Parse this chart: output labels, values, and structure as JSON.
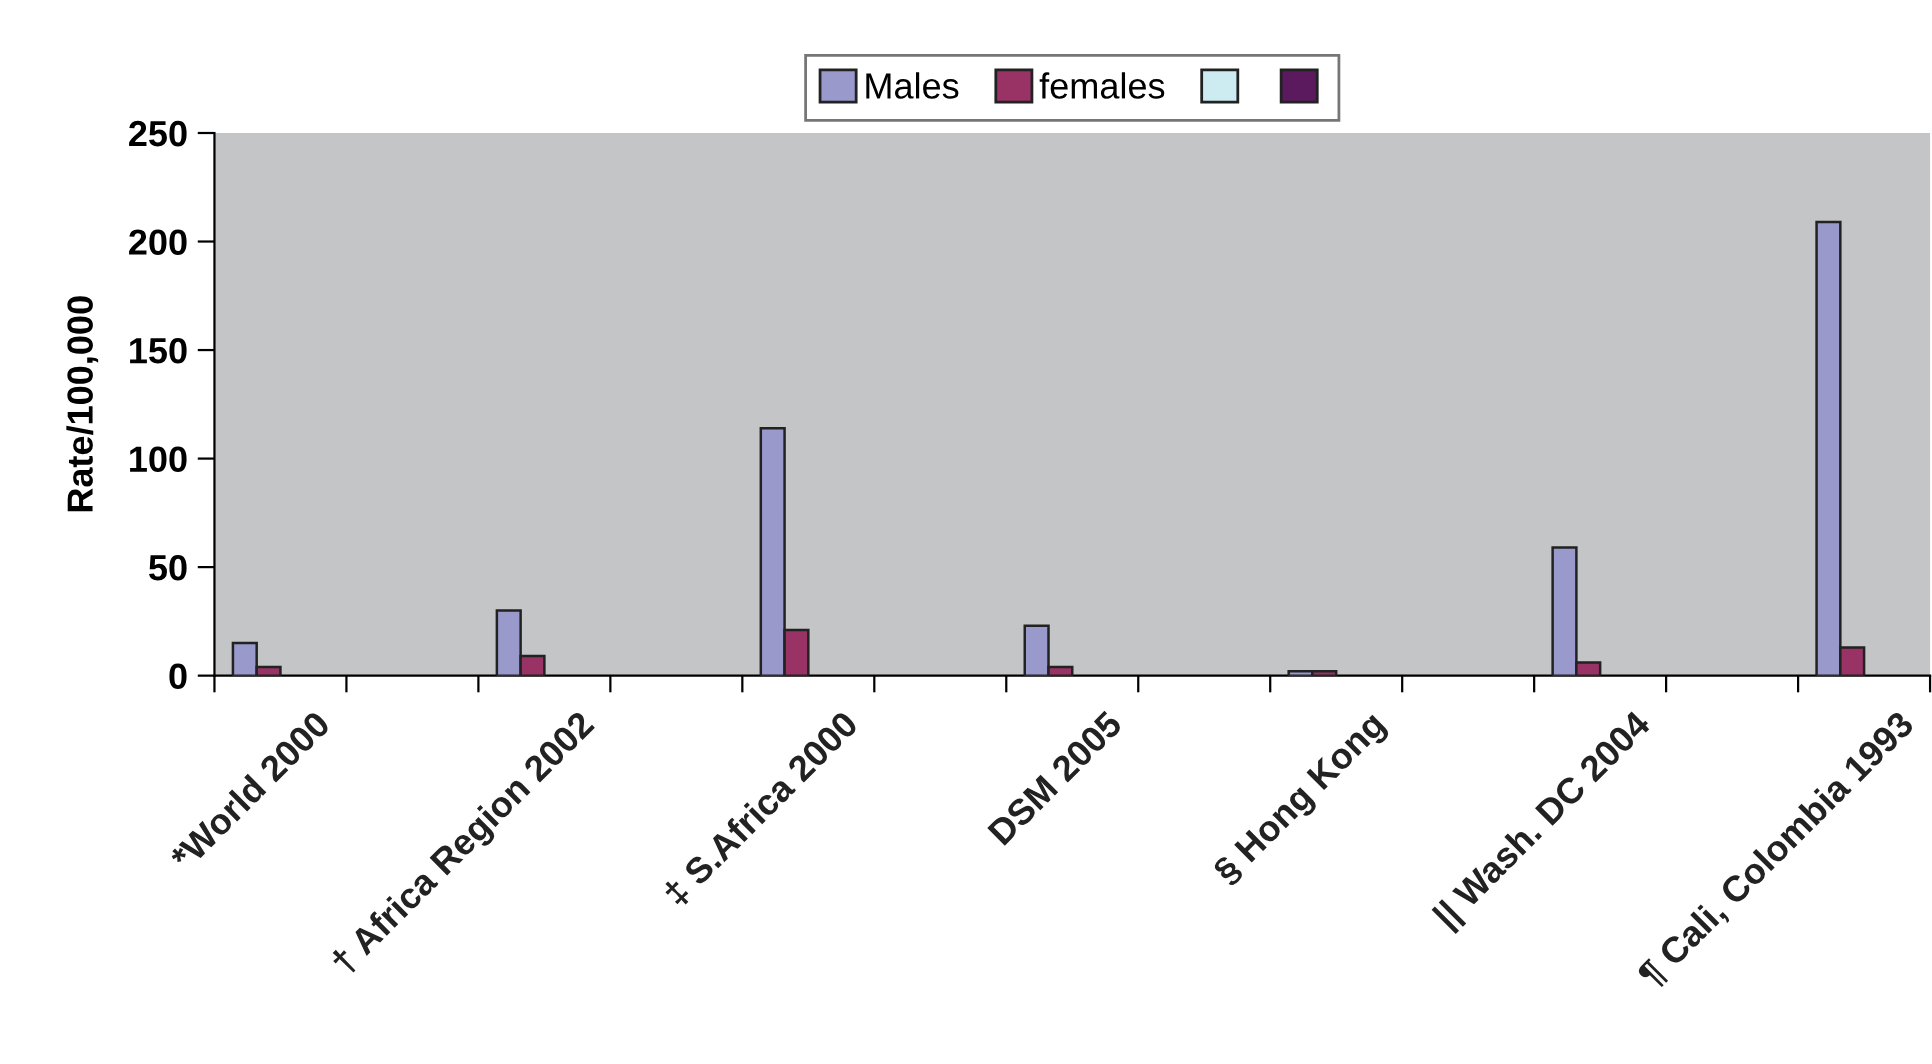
{
  "chart_data": {
    "type": "bar",
    "categories": [
      "*World 2000",
      null,
      "† Africa Region 2002",
      null,
      "‡ S.Africa 2000",
      null,
      "DSM 2005",
      null,
      "§ Hong Kong",
      null,
      "|| Wash. DC 2004",
      null,
      "¶ Cali, Colombia 1993"
    ],
    "series": [
      {
        "name": "Males",
        "color": "#9999cc",
        "values": [
          15,
          null,
          30,
          null,
          114,
          null,
          23,
          null,
          2,
          null,
          59,
          null,
          209
        ]
      },
      {
        "name": "females",
        "color": "#993366",
        "values": [
          4,
          null,
          9,
          null,
          21,
          null,
          4,
          null,
          2,
          null,
          6,
          null,
          13
        ]
      },
      {
        "color": "#ccecf2",
        "values": [
          null,
          null,
          null,
          null,
          null,
          null,
          null,
          null,
          null,
          null,
          null,
          null,
          null
        ]
      },
      {
        "color": "#5c1a5e",
        "values": [
          null,
          null,
          null,
          null,
          null,
          null,
          null,
          null,
          null,
          null,
          null,
          null,
          null
        ]
      }
    ],
    "ylabel": "Rate/100,000",
    "ylim": [
      0,
      250
    ],
    "yticks": [
      0,
      50,
      100,
      150,
      200,
      250
    ],
    "grid": false,
    "legend": "top"
  }
}
